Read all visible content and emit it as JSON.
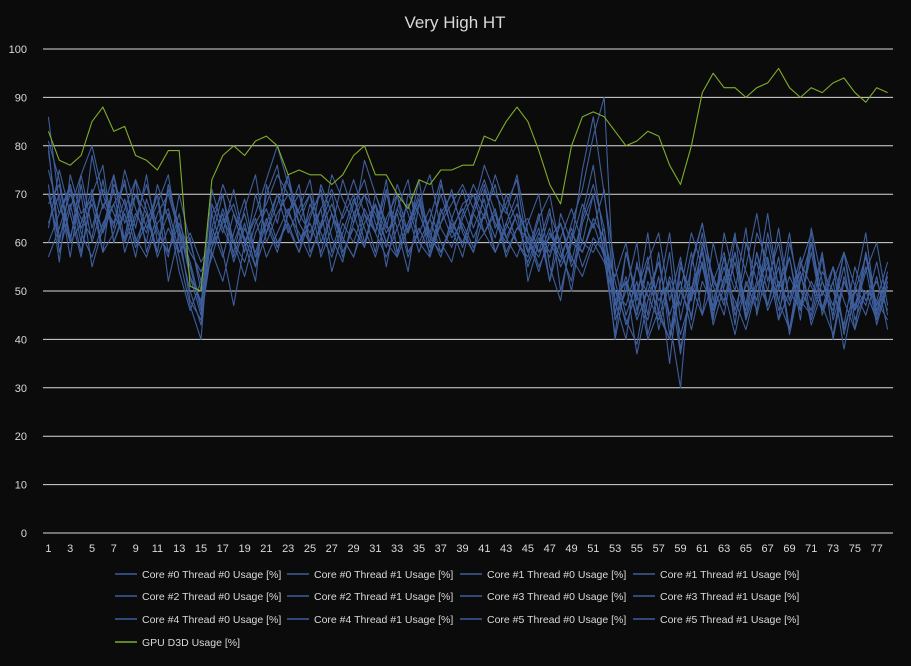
{
  "chart_data": {
    "type": "line",
    "title": "Very High HT",
    "xlabel": "",
    "ylabel": "",
    "ylim": [
      0,
      100
    ],
    "yticks": [
      0,
      10,
      20,
      30,
      40,
      50,
      60,
      70,
      80,
      90,
      100
    ],
    "grid": true,
    "legend_position": "bottom",
    "x": [
      1,
      2,
      3,
      4,
      5,
      6,
      7,
      8,
      9,
      10,
      11,
      12,
      13,
      14,
      15,
      16,
      17,
      18,
      19,
      20,
      21,
      22,
      23,
      24,
      25,
      26,
      27,
      28,
      29,
      30,
      31,
      32,
      33,
      34,
      35,
      36,
      37,
      38,
      39,
      40,
      41,
      42,
      43,
      44,
      45,
      46,
      47,
      48,
      49,
      50,
      51,
      52,
      53,
      54,
      55,
      56,
      57,
      58,
      59,
      60,
      61,
      62,
      63,
      64,
      65,
      66,
      67,
      68,
      69,
      70,
      71,
      72,
      73,
      74,
      75,
      76,
      77,
      78
    ],
    "xtick_labels": [
      "1",
      "3",
      "5",
      "7",
      "9",
      "11",
      "13",
      "15",
      "17",
      "19",
      "21",
      "23",
      "25",
      "27",
      "29",
      "31",
      "33",
      "35",
      "37",
      "39",
      "41",
      "43",
      "45",
      "47",
      "49",
      "51",
      "53",
      "55",
      "57",
      "59",
      "61",
      "63",
      "65",
      "67",
      "69",
      "71",
      "73",
      "75",
      "77"
    ],
    "colors": {
      "background": "#0b0b0b",
      "grid": "#d9d9d9",
      "text": "#d9d9d9",
      "cpu": "#3e5e9c",
      "gpu": "#7fad2a"
    },
    "series": [
      {
        "name": "Core #0 Thread #0 Usage [%]",
        "color": "#3e5e9c",
        "values": [
          81,
          73,
          61,
          70,
          55,
          63,
          72,
          68,
          59,
          64,
          70,
          52,
          62,
          48,
          44,
          59,
          67,
          60,
          56,
          64,
          68,
          74,
          70,
          66,
          62,
          67,
          71,
          65,
          70,
          60,
          68,
          55,
          67,
          62,
          73,
          59,
          64,
          68,
          72,
          67,
          76,
          70,
          66,
          74,
          62,
          55,
          60,
          56,
          64,
          71,
          82,
          90,
          45,
          58,
          49,
          44,
          53,
          35,
          55,
          50,
          62,
          48,
          57,
          43,
          60,
          52,
          66,
          50,
          62,
          47,
          58,
          46,
          55,
          41,
          51,
          47,
          56,
          45
        ]
      },
      {
        "name": "Core #0 Thread #1 Usage [%]",
        "color": "#3e5e9c",
        "values": [
          70,
          60,
          72,
          63,
          68,
          58,
          74,
          64,
          70,
          66,
          58,
          72,
          63,
          53,
          45,
          66,
          58,
          47,
          60,
          52,
          72,
          64,
          74,
          60,
          66,
          70,
          58,
          66,
          73,
          66,
          58,
          70,
          63,
          54,
          68,
          62,
          70,
          63,
          57,
          66,
          72,
          63,
          68,
          73,
          58,
          63,
          52,
          66,
          60,
          75,
          86,
          70,
          55,
          45,
          52,
          40,
          46,
          58,
          38,
          50,
          58,
          44,
          62,
          52,
          46,
          58,
          50,
          63,
          48,
          57,
          44,
          52,
          47,
          58,
          44,
          50,
          48,
          56
        ]
      },
      {
        "name": "Core #1 Thread #0 Usage [%]",
        "color": "#3e5e9c",
        "values": [
          86,
          68,
          60,
          74,
          80,
          70,
          63,
          75,
          67,
          60,
          72,
          65,
          57,
          47,
          40,
          68,
          62,
          71,
          60,
          66,
          73,
          80,
          72,
          66,
          70,
          63,
          74,
          69,
          64,
          77,
          70,
          63,
          72,
          66,
          58,
          65,
          73,
          62,
          68,
          70,
          65,
          74,
          67,
          60,
          57,
          65,
          70,
          58,
          52,
          66,
          76,
          60,
          40,
          52,
          37,
          48,
          56,
          44,
          30,
          56,
          64,
          51,
          45,
          58,
          47,
          62,
          56,
          44,
          60,
          50,
          46,
          57,
          40,
          52,
          46,
          58,
          44,
          52
        ]
      },
      {
        "name": "Core #1 Thread #1 Usage [%]",
        "color": "#3e5e9c",
        "values": [
          63,
          75,
          66,
          57,
          70,
          62,
          68,
          72,
          63,
          74,
          60,
          66,
          54,
          46,
          52,
          61,
          70,
          57,
          64,
          55,
          62,
          70,
          66,
          72,
          58,
          63,
          68,
          61,
          57,
          66,
          62,
          71,
          58,
          64,
          70,
          62,
          57,
          65,
          71,
          63,
          69,
          58,
          64,
          70,
          52,
          60,
          67,
          50,
          60,
          68,
          63,
          71,
          48,
          40,
          56,
          45,
          58,
          41,
          50,
          62,
          55,
          46,
          57,
          50,
          63,
          45,
          55,
          48,
          57,
          46,
          60,
          49,
          55,
          42,
          50,
          57,
          46,
          53
        ]
      },
      {
        "name": "Core #2 Thread #0 Usage [%]",
        "color": "#3e5e9c",
        "values": [
          75,
          66,
          71,
          60,
          78,
          67,
          74,
          60,
          70,
          63,
          68,
          74,
          60,
          50,
          43,
          63,
          72,
          66,
          58,
          70,
          62,
          68,
          74,
          64,
          70,
          57,
          63,
          73,
          66,
          59,
          70,
          64,
          57,
          70,
          66,
          60,
          72,
          65,
          59,
          67,
          73,
          66,
          61,
          66,
          55,
          61,
          57,
          64,
          56,
          65,
          72,
          63,
          44,
          50,
          60,
          41,
          50,
          62,
          44,
          55,
          64,
          52,
          58,
          46,
          55,
          66,
          52,
          60,
          48,
          55,
          62,
          45,
          52,
          58,
          46,
          54,
          60,
          47
        ]
      },
      {
        "name": "Core #2 Thread #1 Usage [%]",
        "color": "#3e5e9c",
        "values": [
          57,
          63,
          70,
          65,
          61,
          73,
          60,
          66,
          57,
          69,
          62,
          58,
          66,
          53,
          48,
          58,
          52,
          62,
          69,
          57,
          64,
          58,
          66,
          70,
          60,
          67,
          54,
          62,
          69,
          63,
          57,
          65,
          70,
          58,
          62,
          67,
          60,
          56,
          65,
          70,
          62,
          67,
          58,
          63,
          61,
          54,
          62,
          57,
          63,
          55,
          61,
          58,
          50,
          44,
          39,
          52,
          46,
          40,
          50,
          45,
          56,
          43,
          51,
          58,
          45,
          52,
          47,
          57,
          42,
          53,
          48,
          58,
          44,
          52,
          47,
          55,
          43,
          51
        ]
      },
      {
        "name": "Core #3 Thread #0 Usage [%]",
        "color": "#3e5e9c",
        "values": [
          80,
          58,
          67,
          74,
          63,
          71,
          66,
          61,
          73,
          67,
          58,
          71,
          63,
          56,
          47,
          71,
          63,
          58,
          67,
          74,
          60,
          66,
          70,
          64,
          60,
          72,
          66,
          60,
          68,
          73,
          64,
          59,
          70,
          62,
          68,
          74,
          63,
          59,
          66,
          72,
          67,
          61,
          70,
          64,
          58,
          66,
          52,
          61,
          67,
          60,
          70,
          58,
          53,
          60,
          46,
          56,
          62,
          48,
          57,
          44,
          60,
          53,
          47,
          61,
          54,
          48,
          62,
          51,
          57,
          44,
          63,
          52,
          45,
          58,
          51,
          62,
          45,
          54
        ]
      },
      {
        "name": "Core #3 Thread #1 Usage [%]",
        "color": "#3e5e9c",
        "values": [
          68,
          72,
          60,
          64,
          71,
          58,
          62,
          69,
          61,
          57,
          64,
          67,
          58,
          61,
          50,
          57,
          65,
          60,
          53,
          62,
          67,
          60,
          64,
          58,
          68,
          62,
          57,
          64,
          60,
          67,
          62,
          57,
          63,
          68,
          60,
          65,
          58,
          63,
          67,
          61,
          66,
          58,
          63,
          68,
          60,
          57,
          63,
          55,
          60,
          58,
          64,
          57,
          50,
          47,
          55,
          49,
          44,
          53,
          47,
          58,
          45,
          52,
          48,
          56,
          44,
          51,
          57,
          46,
          53,
          48,
          45,
          54,
          50,
          43,
          55,
          48,
          52,
          46
        ]
      },
      {
        "name": "Core #4 Thread #0 Usage [%]",
        "color": "#3e5e9c",
        "values": [
          72,
          56,
          74,
          66,
          69,
          62,
          71,
          58,
          65,
          72,
          63,
          57,
          70,
          60,
          52,
          63,
          57,
          66,
          61,
          55,
          70,
          76,
          63,
          58,
          65,
          71,
          61,
          56,
          66,
          70,
          62,
          73,
          58,
          64,
          69,
          57,
          64,
          71,
          62,
          58,
          66,
          72,
          61,
          57,
          64,
          70,
          55,
          48,
          62,
          58,
          65,
          61,
          52,
          43,
          50,
          57,
          42,
          52,
          37,
          51,
          45,
          60,
          50,
          41,
          52,
          46,
          60,
          48,
          42,
          56,
          51,
          46,
          52,
          38,
          50,
          45,
          53,
          42
        ]
      },
      {
        "name": "Core #4 Thread #1 Usage [%]",
        "color": "#3e5e9c",
        "values": [
          64,
          70,
          57,
          72,
          60,
          68,
          64,
          73,
          60,
          66,
          57,
          63,
          58,
          62,
          56,
          60,
          66,
          56,
          63,
          58,
          65,
          59,
          66,
          62,
          57,
          64,
          70,
          58,
          63,
          59,
          68,
          62,
          66,
          57,
          63,
          58,
          67,
          61,
          64,
          59,
          62,
          66,
          57,
          63,
          65,
          58,
          61,
          64,
          55,
          60,
          58,
          63,
          47,
          53,
          44,
          50,
          56,
          45,
          52,
          42,
          52,
          47,
          55,
          45,
          51,
          56,
          46,
          52,
          47,
          54,
          43,
          50,
          46,
          55,
          42,
          50,
          48,
          44
        ]
      },
      {
        "name": "Core #5 Thread #0 Usage [%]",
        "color": "#3e5e9c",
        "values": [
          79,
          61,
          68,
          58,
          70,
          76,
          60,
          67,
          73,
          58,
          66,
          70,
          62,
          55,
          46,
          66,
          70,
          60,
          66,
          57,
          64,
          70,
          62,
          67,
          73,
          60,
          66,
          57,
          64,
          70,
          66,
          60,
          67,
          73,
          60,
          57,
          66,
          70,
          63,
          58,
          71,
          64,
          60,
          66,
          62,
          58,
          66,
          60,
          50,
          64,
          70,
          57,
          41,
          58,
          48,
          62,
          45,
          40,
          56,
          48,
          59,
          46,
          52,
          62,
          44,
          58,
          47,
          55,
          41,
          52,
          60,
          46,
          55,
          48,
          42,
          58,
          47,
          53
        ]
      },
      {
        "name": "Core #5 Thread #1 Usage [%]",
        "color": "#3e5e9c",
        "values": [
          60,
          66,
          72,
          62,
          57,
          64,
          68,
          60,
          66,
          62,
          70,
          58,
          64,
          58,
          54,
          59,
          64,
          68,
          60,
          65,
          57,
          62,
          67,
          60,
          64,
          58,
          66,
          61,
          57,
          64,
          68,
          60,
          57,
          63,
          69,
          61,
          58,
          64,
          60,
          66,
          62,
          58,
          64,
          60,
          56,
          62,
          58,
          64,
          57,
          53,
          60,
          56,
          48,
          52,
          45,
          55,
          48,
          52,
          41,
          49,
          56,
          45,
          53,
          48,
          42,
          51,
          56,
          44,
          50,
          46,
          52,
          47,
          41,
          53,
          46,
          50,
          44,
          52
        ]
      },
      {
        "name": "GPU D3D Usage [%]",
        "color": "#7fad2a",
        "values": [
          83,
          77,
          76,
          78,
          85,
          88,
          83,
          84,
          78,
          77,
          75,
          79,
          79,
          51,
          50,
          73,
          78,
          80,
          78,
          81,
          82,
          80,
          74,
          75,
          74,
          74,
          72,
          74,
          78,
          80,
          74,
          74,
          70,
          67,
          73,
          72,
          75,
          75,
          76,
          76,
          82,
          81,
          85,
          88,
          85,
          79,
          72,
          68,
          80,
          86,
          87,
          86,
          83,
          80,
          81,
          83,
          82,
          76,
          72,
          80,
          91,
          95,
          92,
          92,
          90,
          92,
          93,
          96,
          92,
          90,
          92,
          91,
          93,
          94,
          91,
          89,
          92,
          91
        ]
      }
    ]
  }
}
